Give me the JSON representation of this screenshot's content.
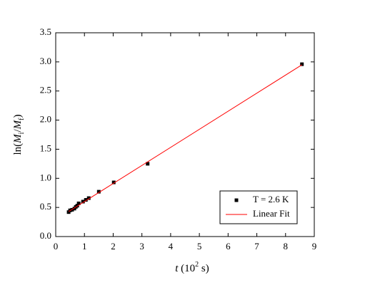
{
  "chart_data": {
    "type": "scatter",
    "xlabel_parts": [
      "t",
      " (10",
      "2",
      " s)"
    ],
    "ylabel_parts": [
      "ln(",
      "M",
      "i",
      "/",
      "M",
      "f",
      ")"
    ],
    "xlim": [
      0,
      9
    ],
    "ylim": [
      0,
      3.5
    ],
    "xticks": [
      0,
      1,
      2,
      3,
      4,
      5,
      6,
      7,
      8,
      9
    ],
    "yticks": [
      {
        "value": 0,
        "label": "0.0"
      },
      0.5,
      {
        "value": 1,
        "label": "1.0"
      },
      1.5,
      {
        "value": 2,
        "label": "2.0"
      },
      2.5,
      {
        "value": 3,
        "label": "3.0"
      },
      3.5
    ],
    "legend": "lower right",
    "series": [
      {
        "name": "T = 2.6 K",
        "mode": "markers",
        "color": "#000000",
        "x": [
          0.45,
          0.5,
          0.57,
          0.65,
          0.7,
          0.75,
          0.8,
          0.95,
          1.05,
          1.15,
          1.5,
          2.02,
          3.2,
          8.57
        ],
        "values": [
          0.42,
          0.45,
          0.46,
          0.48,
          0.51,
          0.53,
          0.57,
          0.6,
          0.63,
          0.66,
          0.77,
          0.93,
          1.25,
          2.96
        ]
      },
      {
        "name": "Linear Fit",
        "mode": "line",
        "color": "#ff0000",
        "x": [
          0.45,
          8.57
        ],
        "values": [
          0.43,
          2.95
        ]
      }
    ]
  }
}
